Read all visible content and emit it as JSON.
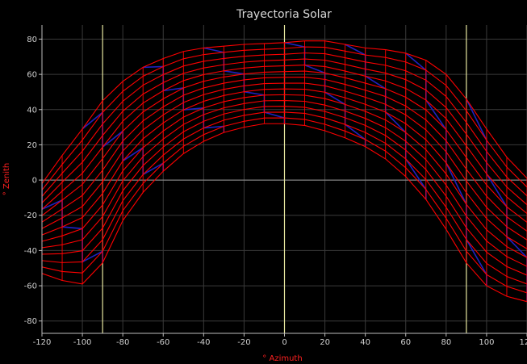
{
  "chart_data": {
    "type": "line",
    "title": "Trayectoria Solar",
    "xlabel": "° Azimuth",
    "ylabel": "° Zenith",
    "xlim": [
      -120,
      120
    ],
    "ylim": [
      -87,
      88
    ],
    "xticks": [
      -120,
      -100,
      -80,
      -60,
      -40,
      -20,
      0,
      20,
      40,
      60,
      80,
      100,
      120
    ],
    "yticks": [
      -80,
      -60,
      -40,
      -20,
      0,
      20,
      40,
      60,
      80
    ],
    "grid": true,
    "colors": {
      "background": "#000000",
      "grid": "#3a3a3a",
      "zero_line": "#9a9a9a",
      "vertical_markers": "#e8e8a0",
      "day_paths": "#ff0000",
      "hour_lines": "#2020c0",
      "title": "#d8d8d8",
      "axis_label": "#ff2020",
      "tick_label": "#cfcfcf"
    },
    "vertical_markers": [
      -90,
      0,
      90
    ],
    "outer_path": {
      "x": [
        -120,
        -110,
        -100,
        -90,
        -80,
        -70,
        -60,
        -50,
        -40,
        -30,
        -20,
        -10,
        0,
        10,
        20,
        30,
        40,
        50,
        60,
        70,
        80,
        90,
        100,
        110,
        120
      ],
      "y": [
        -2,
        14,
        29,
        45,
        56,
        64,
        69,
        73,
        75,
        76,
        77,
        77.5,
        78,
        79,
        79,
        77,
        75,
        74,
        72,
        68,
        60,
        46,
        29,
        13,
        1
      ]
    },
    "inner_path": {
      "x": [
        -120,
        -110,
        -100,
        -90,
        -80,
        -70,
        -60,
        -50,
        -40,
        -30,
        -20,
        -10,
        0,
        10,
        20,
        30,
        40,
        50,
        60,
        70,
        80,
        90,
        100,
        110,
        120
      ],
      "y": [
        -53,
        -57,
        -59,
        -47,
        -23,
        -7,
        5,
        15,
        22,
        27,
        30,
        32,
        32,
        31,
        28,
        24,
        19,
        12,
        2,
        -11,
        -28,
        -47,
        -60,
        -66,
        -69
      ]
    },
    "num_day_paths": 15,
    "num_hour_lines": 8
  }
}
